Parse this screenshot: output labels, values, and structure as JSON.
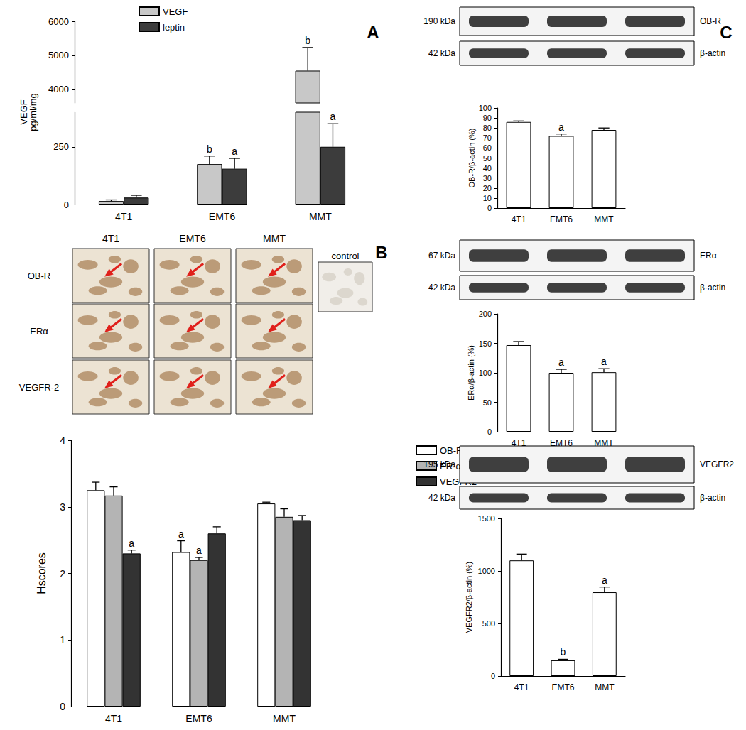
{
  "panel_labels": [
    "A",
    "B",
    "C"
  ],
  "chart_data": [
    {
      "type": "bar",
      "ylabel": "VEGF\npg/ml/mg",
      "categories": [
        "4T1",
        "EMT6",
        "MMT"
      ],
      "series": [
        {
          "name": "VEGF",
          "color": "#c8c8c8",
          "values": [
            15,
            175,
            4550
          ],
          "errors": [
            5,
            35,
            680
          ],
          "letters": [
            null,
            "b",
            "b"
          ]
        },
        {
          "name": "leptin",
          "color": "#3c3c3c",
          "values": [
            30,
            155,
            250
          ],
          "errors": [
            10,
            45,
            100
          ],
          "letters": [
            null,
            "a",
            "a"
          ]
        }
      ],
      "ylim": [
        0,
        6000
      ],
      "ybreak": [
        400,
        3600
      ],
      "yticks": [
        0,
        250,
        4000,
        5000,
        6000
      ],
      "grid": false,
      "legend": "top"
    },
    {
      "type": "bar",
      "ylabel": "Hscores",
      "categories": [
        "4T1",
        "EMT6",
        "MMT"
      ],
      "series": [
        {
          "name": "OB-R",
          "color": "#ffffff",
          "values": [
            3.25,
            2.32,
            3.05
          ],
          "errors": [
            0.12,
            0.17,
            0.02
          ],
          "letters": [
            null,
            "a",
            null
          ]
        },
        {
          "name": "ER-α",
          "color": "#b4b4b4",
          "values": [
            3.17,
            2.2,
            2.85
          ],
          "errors": [
            0.13,
            0.04,
            0.12
          ],
          "letters": [
            null,
            "a",
            null
          ]
        },
        {
          "name": "VEGFR2",
          "color": "#333333",
          "values": [
            2.3,
            2.6,
            2.8
          ],
          "errors": [
            0.05,
            0.1,
            0.07
          ],
          "letters": [
            "a",
            null,
            null
          ]
        }
      ],
      "ylim": [
        0,
        4
      ],
      "yticks": [
        0,
        1,
        2,
        3,
        4
      ],
      "grid": false,
      "legend": "right"
    },
    {
      "type": "bar",
      "ylabel": "OB-R/β-actin (%)",
      "categories": [
        "4T1",
        "EMT6",
        "MMT"
      ],
      "color": "#ffffff",
      "values": [
        86,
        72,
        78
      ],
      "errors": [
        1,
        2,
        2
      ],
      "letters": [
        null,
        "a",
        null
      ],
      "ylim": [
        0,
        100
      ],
      "yticks": [
        0,
        10,
        20,
        30,
        40,
        50,
        60,
        70,
        80,
        90,
        100
      ],
      "grid": false
    },
    {
      "type": "bar",
      "ylabel": "ERα/β-actin (%)",
      "categories": [
        "4T1",
        "EMT6",
        "MMT"
      ],
      "color": "#ffffff",
      "values": [
        147,
        100,
        101
      ],
      "errors": [
        6,
        6,
        6
      ],
      "letters": [
        null,
        "a",
        "a"
      ],
      "ylim": [
        0,
        200
      ],
      "yticks": [
        0,
        50,
        100,
        150,
        200
      ],
      "grid": false
    },
    {
      "type": "bar",
      "ylabel": "VEGFR2/β-actin (%)",
      "categories": [
        "4T1",
        "EMT6",
        "MMT"
      ],
      "color": "#ffffff",
      "values": [
        1100,
        149,
        797
      ],
      "errors": [
        60,
        10,
        50
      ],
      "letters": [
        null,
        "b",
        "a"
      ],
      "ylim": [
        0,
        1500
      ],
      "yticks": [
        0,
        500,
        1000,
        1500
      ],
      "grid": false
    }
  ],
  "micrographs": {
    "columns": [
      "4T1",
      "EMT6",
      "MMT"
    ],
    "rows": [
      "OB-R",
      "ERα",
      "VEGFR-2"
    ],
    "control": "control"
  },
  "blots": [
    {
      "kda": "190 kDa",
      "target": "OB-R",
      "loading_kda": "42 kDa",
      "loading": "β-actin"
    },
    {
      "kda": "67 kDa",
      "target": "ERα",
      "loading_kda": "42 kDa",
      "loading": "β-actin"
    },
    {
      "kda": "195 kDa",
      "target": "VEGFR2",
      "loading_kda": "42 kDa",
      "loading": "β-actin"
    }
  ]
}
